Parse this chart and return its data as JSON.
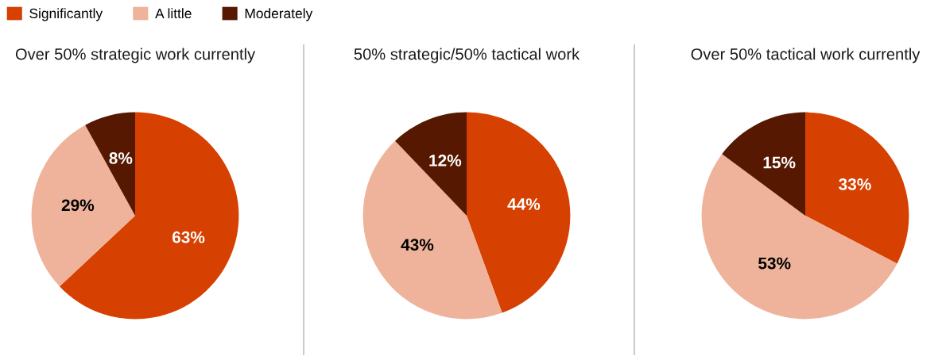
{
  "chart_data": [
    {
      "type": "pie",
      "title": "Over 50% strategic work currently",
      "categories": [
        "Significantly",
        "A little",
        "Moderately"
      ],
      "values": [
        63,
        29,
        8
      ],
      "value_labels": [
        "63%",
        "29%",
        "8%"
      ],
      "colors": [
        "#d64000",
        "#eeb39a",
        "#561800"
      ],
      "legend": "top right"
    },
    {
      "type": "pie",
      "title": "50% strategic/50% tactical work",
      "categories": [
        null,
        null,
        null
      ],
      "values": [
        44,
        43,
        12
      ],
      "value_labels": [
        "44%",
        "43%",
        "12%"
      ],
      "colors": [
        "#d64000",
        "#eeb39a",
        "#561800"
      ]
    },
    {
      "type": "pie",
      "title": "Over 50% tactical work currently",
      "categories": [
        null,
        null,
        null
      ],
      "values": [
        33,
        53,
        15
      ],
      "value_labels": [
        "33%",
        "53%",
        "15%"
      ],
      "colors": [
        "#d64000",
        "#eeb39a",
        "#561800"
      ]
    }
  ]
}
